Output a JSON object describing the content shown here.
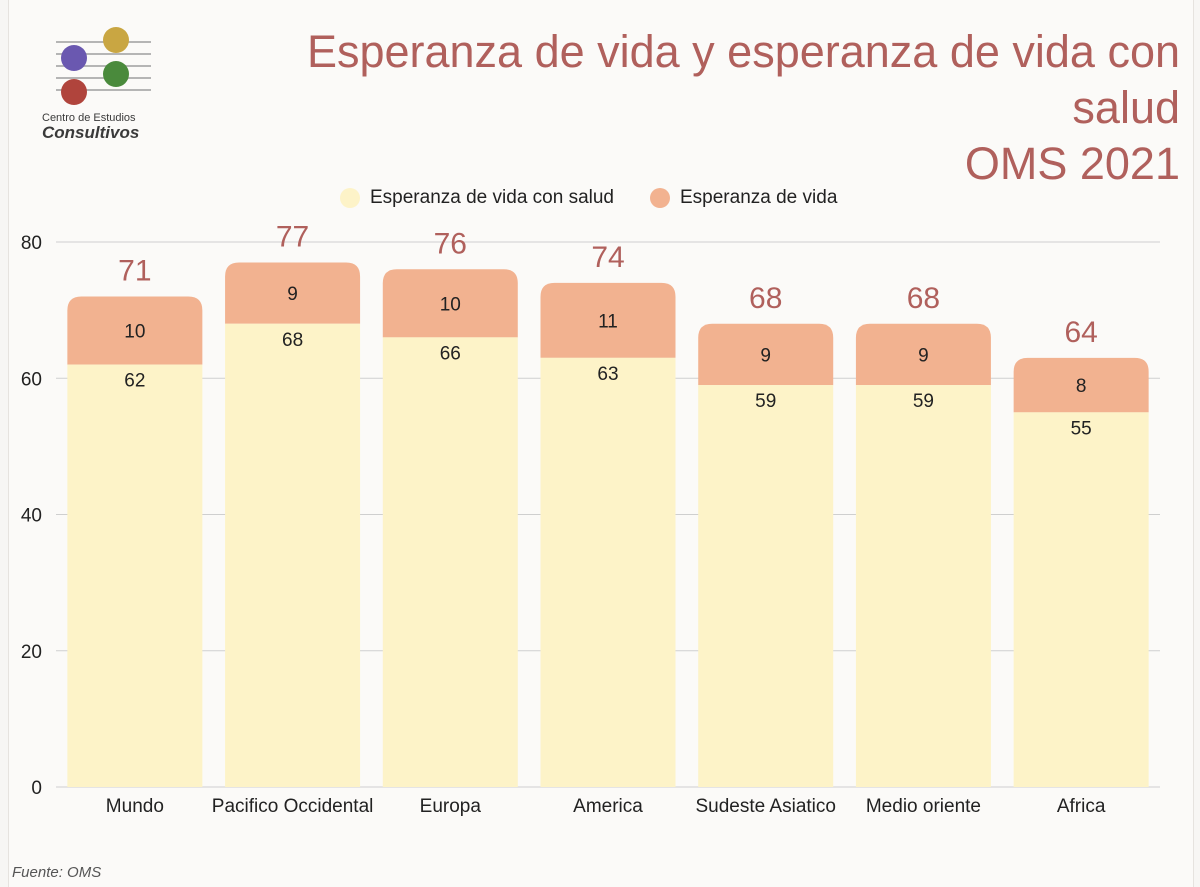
{
  "header": {
    "logo_line1": "Centro de Estudios",
    "logo_line2": "Consultivos",
    "title_line1": "Esperanza de vida y esperanza de vida con salud",
    "title_line2": "OMS 2021"
  },
  "legend": {
    "items": [
      {
        "label": "Esperanza de vida con salud",
        "color": "#fdf3c8"
      },
      {
        "label": "Esperanza de vida",
        "color": "#f2b290"
      }
    ]
  },
  "footer": {
    "source": "Fuente: OMS"
  },
  "colors": {
    "title": "#b0605c",
    "healthy": "#fdf3c8",
    "extra": "#f2b290",
    "total_label": "#b0605c",
    "grid": "#cfcfcf",
    "logo_purple": "#6a58b0",
    "logo_gold": "#c9a642",
    "logo_green": "#4a8a3c",
    "logo_red": "#b0443c"
  },
  "chart_data": {
    "type": "bar",
    "stacked": true,
    "categories": [
      "Mundo",
      "Pacifico Occidental",
      "Europa",
      "America",
      "Sudeste Asiatico",
      "Medio oriente",
      "Africa"
    ],
    "series": [
      {
        "name": "Esperanza de vida con salud",
        "values": [
          62,
          68,
          66,
          63,
          59,
          59,
          55
        ]
      },
      {
        "name": "Esperanza de vida",
        "values": [
          10,
          9,
          10,
          11,
          9,
          9,
          8
        ]
      }
    ],
    "totals": [
      71,
      77,
      76,
      74,
      68,
      68,
      64
    ],
    "yticks": [
      0,
      20,
      40,
      60,
      80
    ],
    "ylim": [
      0,
      80
    ],
    "grid": true,
    "legend_position": "top"
  }
}
